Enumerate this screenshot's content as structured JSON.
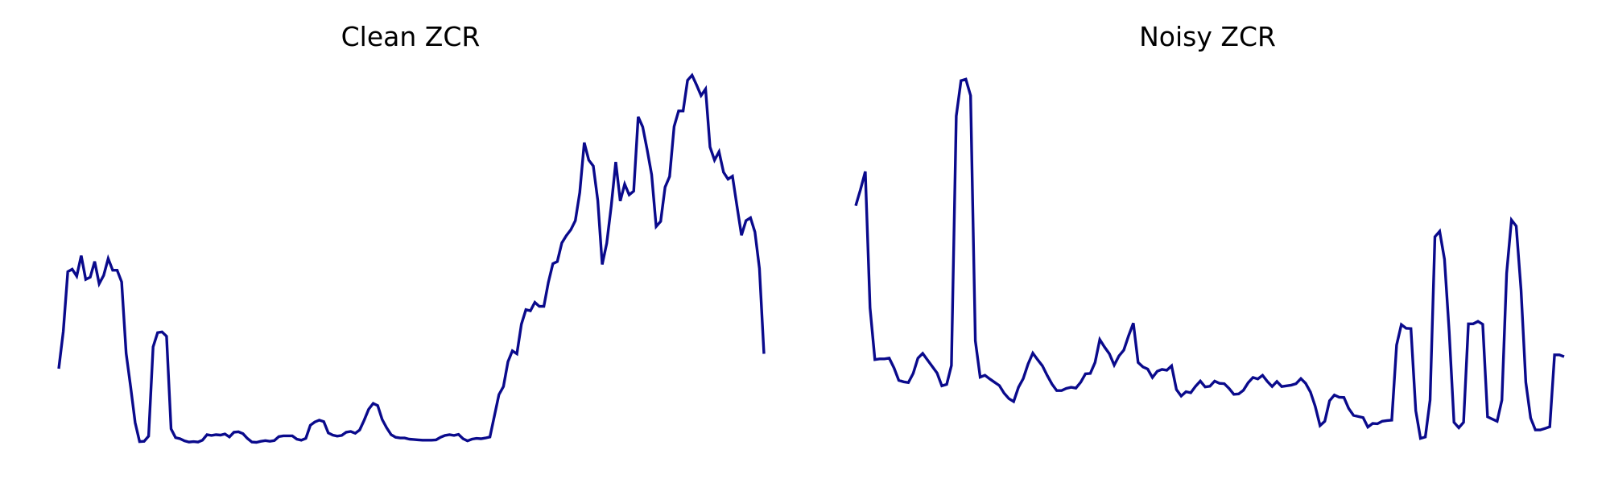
{
  "colors": {
    "line": "#0a0a8c",
    "background": "#ffffff"
  },
  "chart_data": [
    {
      "type": "line",
      "title": "Clean ZCR",
      "axes_visible": false,
      "grid": false,
      "y": [
        0.203,
        0.305,
        0.469,
        0.476,
        0.457,
        0.513,
        0.448,
        0.454,
        0.497,
        0.436,
        0.459,
        0.505,
        0.473,
        0.473,
        0.441,
        0.245,
        0.153,
        0.055,
        0.003,
        0.004,
        0.018,
        0.263,
        0.302,
        0.304,
        0.292,
        0.038,
        0.014,
        0.011,
        0.005,
        0.002,
        0.003,
        0.002,
        0.007,
        0.022,
        0.02,
        0.022,
        0.021,
        0.024,
        0.016,
        0.029,
        0.03,
        0.025,
        0.012,
        0.002,
        0.001,
        0.004,
        0.006,
        0.004,
        0.006,
        0.017,
        0.019,
        0.019,
        0.019,
        0.01,
        0.007,
        0.012,
        0.048,
        0.057,
        0.062,
        0.058,
        0.027,
        0.021,
        0.018,
        0.02,
        0.029,
        0.031,
        0.026,
        0.035,
        0.062,
        0.092,
        0.108,
        0.102,
        0.064,
        0.041,
        0.022,
        0.015,
        0.013,
        0.013,
        0.01,
        0.009,
        0.008,
        0.007,
        0.007,
        0.007,
        0.008,
        0.015,
        0.02,
        0.022,
        0.02,
        0.023,
        0.011,
        0.005,
        0.01,
        0.012,
        0.011,
        0.013,
        0.016,
        0.074,
        0.132,
        0.154,
        0.222,
        0.252,
        0.244,
        0.325,
        0.365,
        0.362,
        0.385,
        0.374,
        0.374,
        0.44,
        0.491,
        0.497,
        0.548,
        0.568,
        0.584,
        0.609,
        0.686,
        0.823,
        0.775,
        0.759,
        0.664,
        0.489,
        0.547,
        0.649,
        0.77,
        0.663,
        0.709,
        0.68,
        0.69,
        0.894,
        0.866,
        0.804,
        0.735,
        0.593,
        0.607,
        0.701,
        0.73,
        0.867,
        0.91,
        0.91,
        0.994,
        1.008,
        0.981,
        0.952,
        0.97,
        0.811,
        0.775,
        0.798,
        0.742,
        0.723,
        0.731,
        0.649,
        0.569,
        0.609,
        0.617,
        0.578,
        0.478,
        0.244
      ]
    },
    {
      "type": "line",
      "title": "Noisy ZCR",
      "axes_visible": false,
      "grid": false,
      "y": [
        0.65,
        0.694,
        0.744,
        0.37,
        0.228,
        0.23,
        0.23,
        0.232,
        0.205,
        0.171,
        0.167,
        0.165,
        0.19,
        0.232,
        0.245,
        0.227,
        0.209,
        0.191,
        0.156,
        0.16,
        0.212,
        0.896,
        0.993,
        0.997,
        0.952,
        0.28,
        0.18,
        0.185,
        0.175,
        0.166,
        0.157,
        0.136,
        0.121,
        0.113,
        0.152,
        0.176,
        0.216,
        0.246,
        0.228,
        0.211,
        0.185,
        0.161,
        0.143,
        0.143,
        0.149,
        0.152,
        0.15,
        0.166,
        0.189,
        0.19,
        0.22,
        0.283,
        0.262,
        0.244,
        0.213,
        0.238,
        0.254,
        0.293,
        0.328,
        0.22,
        0.208,
        0.202,
        0.179,
        0.196,
        0.201,
        0.199,
        0.211,
        0.146,
        0.128,
        0.14,
        0.137,
        0.155,
        0.169,
        0.153,
        0.155,
        0.169,
        0.163,
        0.162,
        0.149,
        0.133,
        0.134,
        0.144,
        0.165,
        0.179,
        0.175,
        0.185,
        0.168,
        0.154,
        0.168,
        0.154,
        0.156,
        0.158,
        0.162,
        0.176,
        0.163,
        0.139,
        0.1,
        0.047,
        0.059,
        0.115,
        0.131,
        0.125,
        0.124,
        0.094,
        0.075,
        0.072,
        0.069,
        0.043,
        0.053,
        0.052,
        0.059,
        0.061,
        0.062,
        0.268,
        0.324,
        0.314,
        0.313,
        0.088,
        0.012,
        0.016,
        0.117,
        0.565,
        0.58,
        0.503,
        0.302,
        0.056,
        0.041,
        0.056,
        0.326,
        0.326,
        0.333,
        0.325,
        0.071,
        0.065,
        0.059,
        0.117,
        0.465,
        0.611,
        0.594,
        0.419,
        0.166,
        0.068,
        0.035,
        0.035,
        0.039,
        0.044,
        0.241,
        0.241,
        0.236
      ]
    }
  ]
}
